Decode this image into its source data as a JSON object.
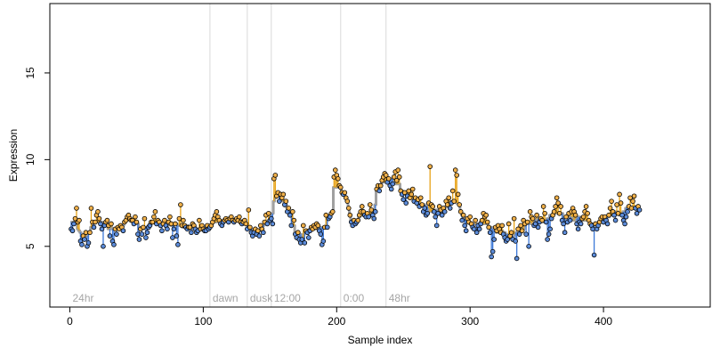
{
  "chart_data": {
    "type": "scatter",
    "title": "",
    "xlabel": "Sample index",
    "ylabel": "Expression",
    "xlim": [
      -15,
      480
    ],
    "ylim": [
      1.5,
      19
    ],
    "x_ticks": [
      0,
      100,
      200,
      300,
      400
    ],
    "y_ticks": [
      5,
      10,
      15
    ],
    "grid": false,
    "phase_markers": [
      {
        "label": "24hr",
        "x": 0,
        "line": false
      },
      {
        "label": "dawn",
        "x": 105,
        "line": true
      },
      {
        "label": "dusk",
        "x": 133,
        "line": true
      },
      {
        "label": "12:00",
        "x": 151,
        "line": true
      },
      {
        "label": "0:00",
        "x": 203,
        "line": true
      },
      {
        "label": "48hr",
        "x": 237,
        "line": true
      }
    ],
    "baseline_color": "#a0a0a0",
    "above_color": "#e8a317",
    "below_color": "#3c78d8",
    "point_fill_above": "#f0b04a",
    "point_fill_below": "#5b8bd9",
    "series": [
      {
        "values": [
          6.0,
          5.9,
          6.3,
          6.6,
          7.2,
          6.4,
          6.5,
          5.3,
          5.1,
          5.6,
          5.4,
          5.8,
          5.0,
          5.2,
          5.8,
          7.2,
          6.4,
          6.1,
          6.4,
          6.8,
          7.0,
          6.6,
          6.3,
          6.0,
          5.0,
          6.2,
          6.4,
          6.5,
          6.2,
          5.6,
          6.3,
          5.3,
          5.1,
          6.0,
          5.7,
          6.1,
          6.0,
          6.2,
          6.1,
          5.9,
          6.4,
          6.5,
          6.7,
          6.8,
          6.6,
          6.5,
          6.5,
          6.3,
          6.7,
          6.4,
          5.7,
          5.4,
          6.0,
          5.7,
          6.1,
          6.6,
          5.5,
          5.8,
          6.1,
          6.2,
          6.4,
          6.4,
          6.7,
          7.0,
          6.3,
          6.5,
          6.4,
          6.2,
          5.9,
          6.3,
          6.5,
          6.2,
          6.0,
          6.4,
          6.7,
          6.3,
          5.5,
          6.0,
          6.3,
          5.6,
          5.1,
          6.6,
          7.4,
          6.2,
          6.5,
          6.2,
          6.1,
          6.0,
          6.1,
          6.1,
          5.8,
          6.3,
          6.2,
          6.0,
          5.8,
          5.9,
          6.5,
          6.0,
          6.2,
          6.0,
          5.9,
          5.9,
          6.2,
          6.0,
          6.1,
          6.2,
          6.4,
          6.6,
          6.8,
          7.0,
          6.7,
          6.5,
          6.3,
          6.2,
          6.4,
          6.5,
          6.6,
          6.5,
          6.4,
          6.6,
          6.7,
          6.5,
          6.4,
          6.5,
          6.6,
          6.5,
          6.7,
          6.4,
          6.3,
          6.4,
          6.5,
          6.3,
          6.0,
          7.1,
          6.1,
          5.8,
          5.6,
          5.8,
          6.0,
          5.7,
          5.9,
          5.6,
          6.2,
          6.0,
          5.8,
          6.4,
          6.8,
          6.3,
          6.9,
          6.5,
          6.6,
          6.3,
          8.9,
          9.1,
          7.9,
          8.1,
          7.6,
          8.0,
          7.8,
          8.0,
          7.4,
          7.6,
          7.0,
          7.2,
          6.8,
          6.2,
          7.0,
          6.5,
          5.7,
          5.5,
          5.8,
          5.4,
          5.2,
          5.4,
          6.2,
          5.2,
          5.9,
          5.8,
          5.5,
          5.9,
          6.1,
          6.0,
          6.2,
          6.1,
          6.3,
          6.2,
          5.9,
          5.7,
          5.1,
          5.3,
          6.1,
          6.8,
          6.1,
          6.6,
          6.7,
          6.9,
          7.0,
          9.0,
          9.4,
          9.1,
          8.9,
          8.5,
          8.4,
          8.1,
          8.0,
          8.1,
          7.8,
          7.6,
          7.2,
          6.8,
          6.4,
          6.2,
          6.5,
          6.3,
          6.4,
          6.5,
          6.8,
          7.0,
          7.3,
          7.0,
          6.8,
          6.7,
          6.9,
          6.7,
          7.4,
          7.1,
          6.8,
          6.6,
          7.0,
          8.3,
          8.5,
          8.2,
          8.5,
          8.8,
          9.0,
          9.2,
          9.1,
          8.7,
          8.9,
          8.5,
          8.3,
          8.6,
          9.0,
          9.3,
          8.8,
          9.4,
          9.0,
          8.2,
          8.0,
          7.7,
          8.1,
          7.5,
          7.9,
          8.2,
          7.8,
          8.0,
          8.3,
          7.6,
          7.8,
          7.5,
          7.7,
          7.3,
          7.8,
          7.4,
          7.0,
          7.2,
          6.8,
          6.9,
          7.5,
          9.6,
          7.4,
          7.3,
          7.0,
          6.7,
          6.2,
          6.9,
          7.3,
          7.1,
          6.8,
          7.2,
          7.0,
          7.6,
          7.4,
          7.8,
          7.2,
          7.5,
          8.2,
          7.6,
          9.4,
          9.1,
          8.0,
          7.4,
          7.0,
          6.5,
          6.8,
          6.2,
          5.9,
          6.6,
          6.4,
          6.7,
          6.3,
          6.1,
          6.0,
          6.5,
          5.8,
          6.2,
          6.0,
          6.3,
          6.5,
          6.9,
          6.7,
          6.8,
          6.4,
          6.1,
          5.8,
          4.4,
          4.7,
          5.4,
          6.1,
          5.9,
          6.2,
          6.0,
          5.8,
          6.2,
          5.7,
          5.5,
          5.3,
          5.4,
          6.3,
          5.6,
          5.8,
          5.4,
          6.6,
          5.3,
          4.3,
          6.0,
          5.7,
          6.2,
          5.9,
          6.5,
          6.3,
          5.7,
          6.4,
          5.0,
          7.0,
          6.7,
          6.6,
          6.2,
          6.3,
          6.8,
          6.1,
          6.4,
          6.6,
          6.5,
          7.3,
          6.9,
          6.4,
          5.4,
          5.7,
          6.0,
          6.6,
          6.8,
          7.0,
          7.3,
          7.8,
          7.5,
          6.9,
          7.3,
          6.5,
          6.3,
          5.8,
          6.7,
          6.4,
          6.9,
          6.5,
          7.0,
          7.2,
          7.0,
          6.8,
          6.3,
          6.0,
          6.4,
          6.3,
          6.6,
          6.7,
          7.0,
          7.3,
          6.9,
          6.5,
          6.3,
          6.2,
          6.0,
          4.5,
          6.3,
          6.0,
          6.2,
          6.4,
          6.6,
          6.7,
          6.4,
          6.7,
          6.5,
          6.3,
          6.8,
          7.2,
          7.6,
          7.0,
          6.8,
          6.5,
          7.4,
          6.9,
          8.0,
          7.5,
          6.8,
          6.5,
          6.3,
          6.7,
          7.0,
          7.3,
          7.8,
          7.2,
          7.6,
          7.9,
          7.2,
          6.9,
          7.3,
          7.1
        ]
      }
    ]
  }
}
